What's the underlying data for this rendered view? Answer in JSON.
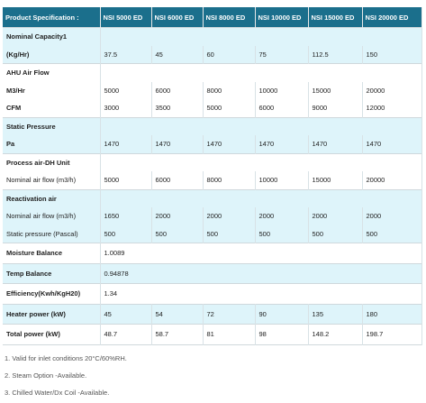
{
  "table": {
    "header": [
      "Product Specification :",
      "NSI 5000 ED",
      "NSI 6000 ED",
      "NSI 8000 ED",
      "NSI 10000 ED",
      "NSI 15000 ED",
      "NSI 20000 ED"
    ],
    "groups": [
      {
        "rows": [
          [
            "Nominal Capacity1"
          ],
          [
            "(Kg/Hr)",
            "37.5",
            "45",
            "60",
            "75",
            "112.5",
            "150"
          ]
        ]
      },
      {
        "rows": [
          [
            "AHU Air Flow"
          ],
          [
            "M3/Hr",
            "5000",
            "6000",
            "8000",
            "10000",
            "15000",
            "20000"
          ],
          [
            "CFM",
            "3000",
            "3500",
            "5000",
            "6000",
            "9000",
            "12000"
          ]
        ]
      },
      {
        "rows": [
          [
            "Static Pressure"
          ],
          [
            "Pa",
            "1470",
            "1470",
            "1470",
            "1470",
            "1470",
            "1470"
          ]
        ]
      },
      {
        "rows": [
          [
            "Process air-DH Unit"
          ],
          [
            "Nominal air flow (m3/h)",
            "5000",
            "6000",
            "8000",
            "10000",
            "15000",
            "20000"
          ]
        ]
      },
      {
        "rows": [
          [
            "Reactivation air"
          ],
          [
            "Nominal air flow (m3/h)",
            "1650",
            "2000",
            "2000",
            "2000",
            "2000",
            "2000"
          ],
          [
            "Static pressure (Pascal)",
            "500",
            "500",
            "500",
            "500",
            "500",
            "500"
          ]
        ]
      },
      {
        "rows": [
          [
            "Moisture Balance",
            "1.0089"
          ]
        ]
      },
      {
        "rows": [
          [
            "Temp Balance",
            "0.94878"
          ]
        ]
      },
      {
        "rows": [
          [
            "Efficiency(Kwh/KgH20)",
            "1.34"
          ]
        ]
      },
      {
        "rows": [
          [
            "Heater power (kW)",
            "45",
            "54",
            "72",
            "90",
            "135",
            "180"
          ]
        ]
      },
      {
        "rows": [
          [
            "Total power (kW)",
            "48.7",
            "58.7",
            "81",
            "98",
            "148.2",
            "198.7"
          ]
        ]
      }
    ]
  },
  "notes": [
    "1. Valid for inlet conditions 20°C/60%RH.",
    "2. Steam Option -Available.",
    "3. Chilled Water/Dx Coil -Available."
  ]
}
